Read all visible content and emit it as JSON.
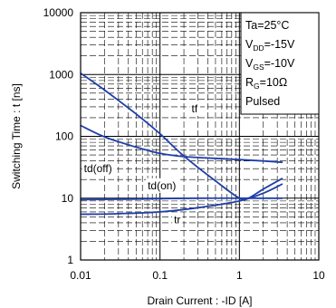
{
  "chart_data": {
    "type": "line",
    "title": "",
    "xlabel": "Drain Current : -ID [A]",
    "ylabel": "Switching Time : t [ns]",
    "x_scale": "log",
    "y_scale": "log",
    "xlim": [
      0.01,
      10
    ],
    "ylim": [
      1,
      10000
    ],
    "x_ticks": [
      "0.01",
      "0.1",
      "1",
      "10"
    ],
    "y_ticks": [
      "1",
      "10",
      "100",
      "1000",
      "10000"
    ],
    "grid": true,
    "line_color": "#1f3faa",
    "conditions": [
      {
        "main": "Ta=25°C",
        "sub": "",
        "tail": ""
      },
      {
        "main": "V",
        "sub": "DD",
        "tail": "=-15V"
      },
      {
        "main": "V",
        "sub": "GS",
        "tail": "=-10V"
      },
      {
        "main": "R",
        "sub": "G",
        "tail": "=10Ω"
      },
      {
        "main": "Pulsed",
        "sub": "",
        "tail": ""
      }
    ],
    "series": [
      {
        "name": "tf",
        "label_at": [
          0.25,
          280
        ],
        "x": [
          0.01,
          0.02,
          0.05,
          0.1,
          0.2,
          0.5,
          1,
          1.3,
          2,
          3.5
        ],
        "y": [
          1050,
          560,
          230,
          110,
          48,
          19,
          10,
          10,
          14,
          21
        ]
      },
      {
        "name": "td(off)",
        "label_at": [
          0.011,
          30
        ],
        "x": [
          0.01,
          0.02,
          0.05,
          0.1,
          0.2,
          0.5,
          1,
          2,
          3.5
        ],
        "y": [
          150,
          98,
          67,
          53,
          47,
          44,
          42,
          40,
          38
        ]
      },
      {
        "name": "td(on)",
        "label_at": [
          0.07,
          16
        ],
        "x": [
          0.01,
          0.03,
          0.1,
          0.3,
          1,
          2,
          3.5
        ],
        "y": [
          9.5,
          9.6,
          9.8,
          10,
          10,
          10,
          10
        ]
      },
      {
        "name": "tr",
        "label_at": [
          0.15,
          4.5
        ],
        "x": [
          0.01,
          0.03,
          0.1,
          0.3,
          1,
          2,
          3.5
        ],
        "y": [
          5.5,
          5.6,
          6.0,
          7.0,
          9.0,
          12,
          17
        ]
      }
    ]
  }
}
